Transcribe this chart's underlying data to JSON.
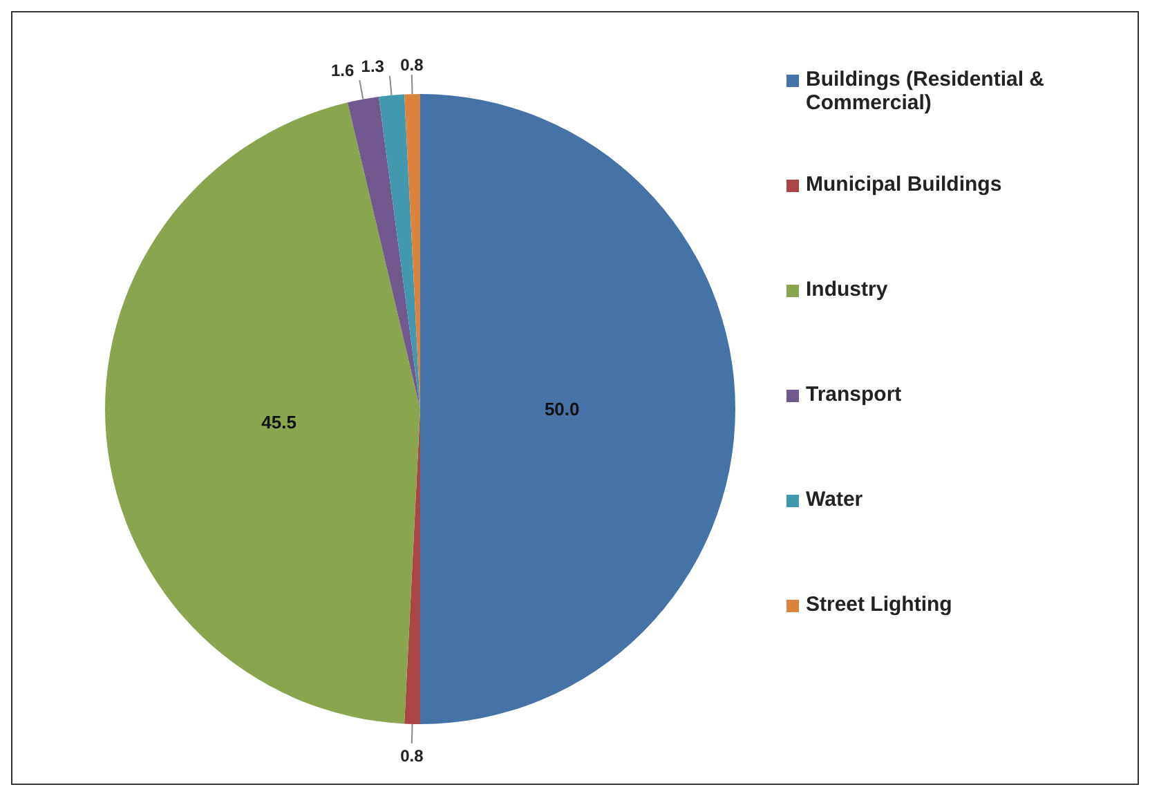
{
  "chart_data": {
    "type": "pie",
    "categories": [
      "Buildings (Residential & Commercial)",
      "Municipal Buildings",
      "Industry",
      "Transport",
      "Water",
      "Street Lighting"
    ],
    "values": [
      50.0,
      0.8,
      45.5,
      1.6,
      1.3,
      0.8
    ],
    "colors": [
      "#4572a7",
      "#aa4643",
      "#89a54e",
      "#71588f",
      "#4198af",
      "#db843d"
    ],
    "value_labels": [
      "50.0",
      "0.8",
      "45.5",
      "1.6",
      "1.3",
      "0.8"
    ],
    "legend": "right"
  }
}
